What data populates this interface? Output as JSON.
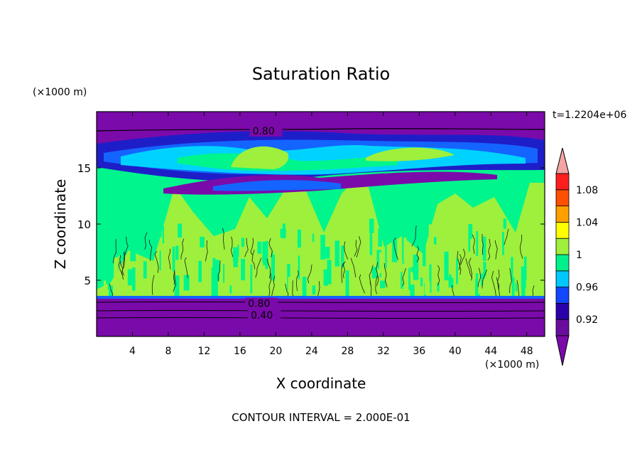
{
  "chart_data": {
    "type": "heatmap",
    "title": "Saturation Ratio",
    "xlabel": "X coordinate",
    "ylabel": "Z coordinate",
    "x_unit": "(×1000 m)",
    "y_unit": "(×1000 m)",
    "xlim": [
      0,
      50
    ],
    "ylim": [
      0,
      20
    ],
    "x_ticks": [
      4,
      8,
      12,
      16,
      20,
      24,
      28,
      32,
      36,
      40,
      44,
      48
    ],
    "y_ticks": [
      5,
      10,
      15
    ],
    "time_label": "t=1.2204e+06",
    "contour_interval_label": "CONTOUR INTERVAL = 2.000E-01",
    "contour_labels": [
      {
        "text": "0.80",
        "x": 17.4,
        "y": 18.1
      },
      {
        "text": "0.80",
        "x": 16.9,
        "y": 2.75
      },
      {
        "text": "0.40",
        "x": 17.2,
        "y": 1.7
      }
    ],
    "colorbar": {
      "levels": [
        0.9,
        0.92,
        0.94,
        0.96,
        0.98,
        1.0,
        1.02,
        1.04,
        1.06,
        1.08,
        1.1
      ],
      "labels": [
        "0.92",
        "0.96",
        "1",
        "1.04",
        "1.08"
      ],
      "colors": [
        "#6a0d9e",
        "#2a00a8",
        "#1246ff",
        "#00c8ff",
        "#00f08c",
        "#9ef03c",
        "#ffff00",
        "#ffa000",
        "#ff5000",
        "#ff1e1e"
      ],
      "under_color": "#7b0aaa",
      "over_color": "#f4a4a4"
    },
    "colors": {
      "dry": "#7b0aaa",
      "dark_blue": "#1e1ec8",
      "blue": "#1464ff",
      "cyan": "#00d2ff",
      "green": "#00f58c",
      "light_green": "#9ef03c"
    }
  }
}
